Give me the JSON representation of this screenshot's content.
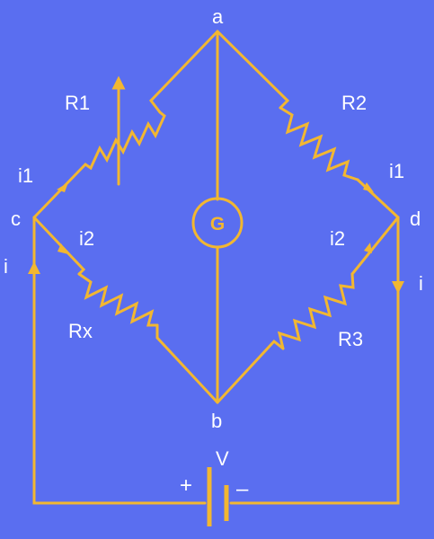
{
  "colors": {
    "background": "#5a6ef0",
    "wire": "#f2b731",
    "label": "#ffffff"
  },
  "nodes": {
    "a": "a",
    "b": "b",
    "c": "c",
    "d": "d"
  },
  "resistors": {
    "r1": "R1",
    "r2": "R2",
    "r3": "R3",
    "rx": "Rx"
  },
  "galvanometer": "G",
  "battery": {
    "label": "V",
    "plus": "+",
    "minus": "–"
  },
  "currents": {
    "i1_left": "i1",
    "i2_left": "i2",
    "i_left": "i",
    "i1_right": "i1",
    "i2_right": "i2",
    "i_right": "i"
  }
}
